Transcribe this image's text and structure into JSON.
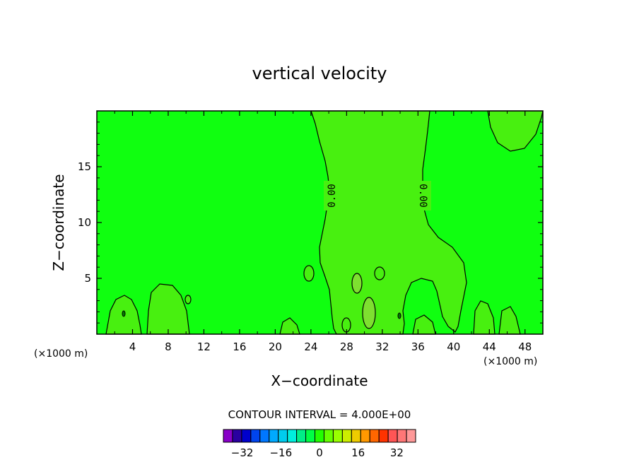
{
  "chart_data": {
    "type": "contour",
    "title": "vertical velocity",
    "xlabel": "X−coordinate",
    "ylabel": "Z−coordinate",
    "x_unit": "(×1000 m)",
    "xlim": [
      0,
      50
    ],
    "ylim": [
      0,
      20
    ],
    "x_ticks": [
      4,
      8,
      12,
      16,
      20,
      24,
      28,
      32,
      36,
      40,
      44,
      48
    ],
    "y_ticks": [
      5,
      10,
      15
    ],
    "contour_labels": [
      "0.00",
      "0.00"
    ],
    "contour_interval_text": "CONTOUR INTERVAL = 4.000E+00",
    "colorbar": {
      "levels": [
        -36,
        -32,
        -28,
        -24,
        -20,
        -16,
        -12,
        -8,
        -4,
        0,
        4,
        8,
        12,
        16,
        20,
        24,
        28,
        32,
        36
      ],
      "tick_labels": [
        "−32",
        "−16",
        "0",
        "16",
        "32"
      ],
      "tick_values": [
        -32,
        -16,
        0,
        16,
        32
      ],
      "colors": [
        "#8800c8",
        "#2a00a0",
        "#0000cc",
        "#0044ee",
        "#0077ff",
        "#00aaff",
        "#00ccee",
        "#00eedd",
        "#00ee88",
        "#00ff44",
        "#22ff00",
        "#66ff00",
        "#99ff00",
        "#ccee00",
        "#eecc00",
        "#ff9900",
        "#ff6600",
        "#ff3300",
        "#ff5555",
        "#ff7777",
        "#ff9999"
      ]
    },
    "field_colors": {
      "background": "#10ff10",
      "positive": "#48f010",
      "strong_positive": "#7ee030"
    },
    "grid": false
  }
}
